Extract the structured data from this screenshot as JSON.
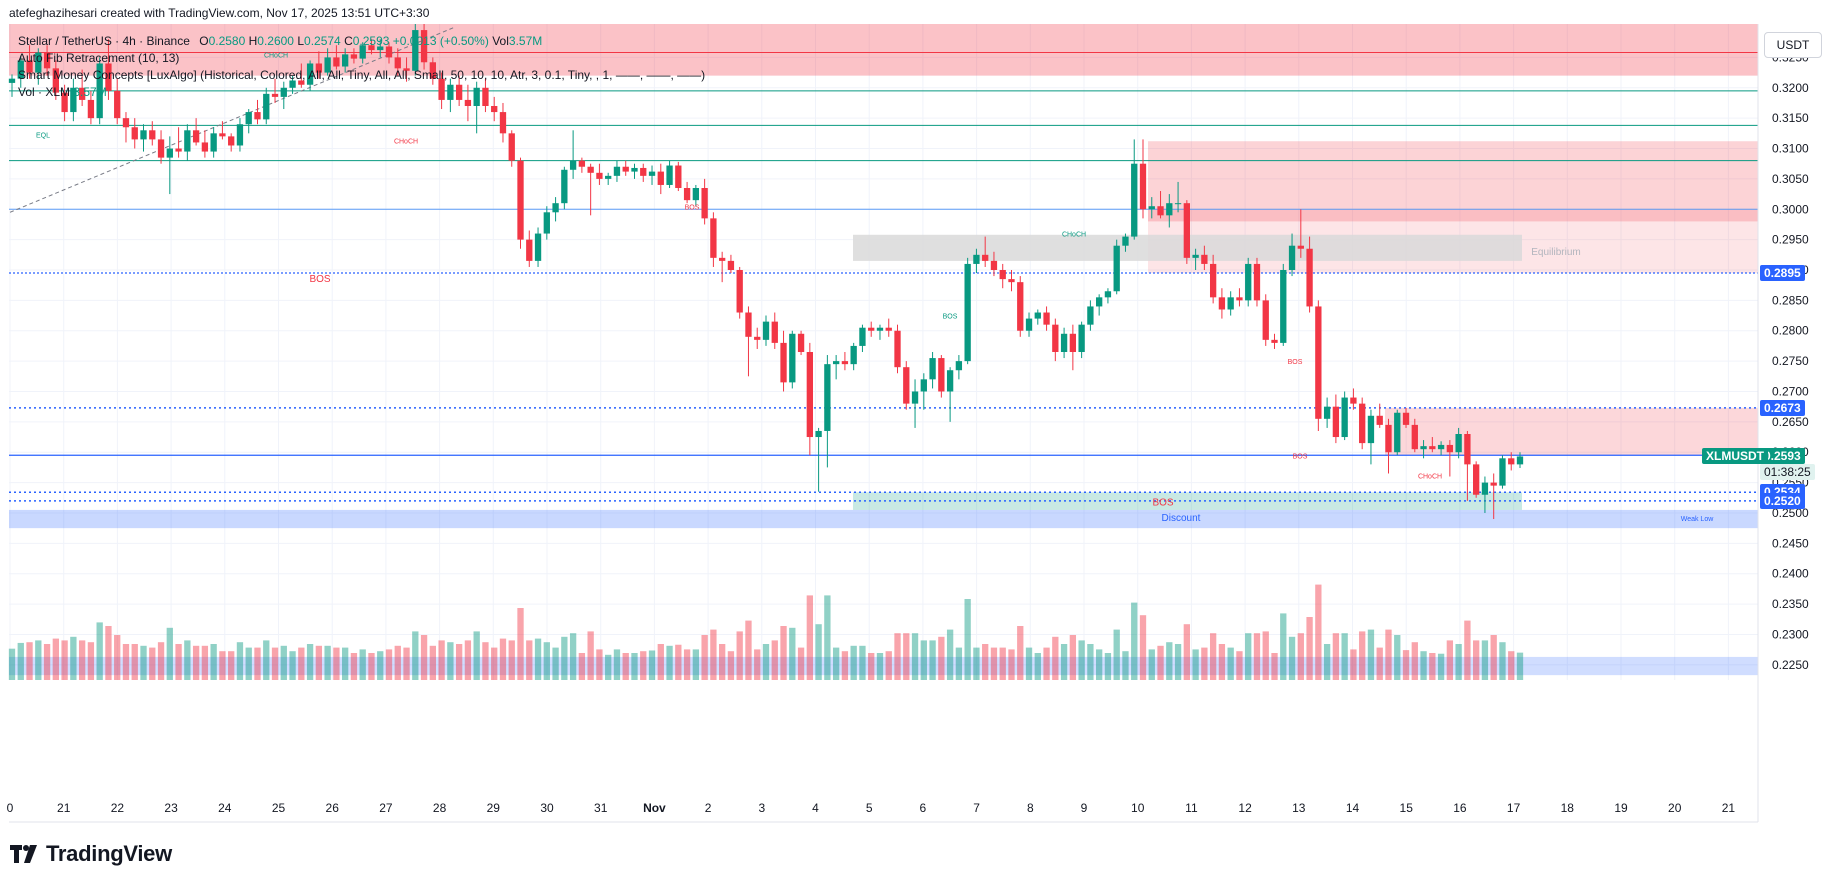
{
  "header": {
    "created_by": "atefeghazihesari created with TradingView.com, Nov 17, 2025 13:51 UTC+3:30"
  },
  "legend": {
    "symbol": "Stellar / TetherUS · 4h · Binance",
    "open_label": "O",
    "open": "0.2580",
    "high_label": "H",
    "high": "0.2600",
    "low_label": "L",
    "low": "0.2574",
    "close_label": "C",
    "close": "0.2593",
    "change": "+0.0013 (+0.50%)",
    "vol_label": "Vol",
    "vol": "3.57M",
    "indicator1": "Auto Fib Retracement (10, 13)",
    "indicator2": "Smart Money Concepts [LuxAlgo] (Historical, Colored, All, All, Tiny, All, All, Small, 50, 10, 10, Atr, 3, 0.1, Tiny, , 1, ——, ——, ——)",
    "indicator3_label": "Vol · XLM",
    "indicator3_value": "3.57M"
  },
  "currency_button": "USDT",
  "branding": "TradingView",
  "colors": {
    "up": "#089981",
    "down": "#f23645",
    "blue": "#2962ff",
    "supply_zone": "#f7c9cd",
    "demand_zone": "#c9e8e1",
    "discount_zone": "#c7d7fb",
    "equilibrium": "#d9d9d9"
  },
  "chart_data": {
    "type": "candlestick",
    "symbol": "XLMUSDT",
    "interval": "4h",
    "y_axis": {
      "ylim": [
        0.2225,
        0.3305
      ],
      "ticks": [
        "0.3250",
        "0.3200",
        "0.3150",
        "0.3100",
        "0.3050",
        "0.3000",
        "0.2950",
        "0.2900",
        "0.2850",
        "0.2800",
        "0.2750",
        "0.2700",
        "0.2650",
        "0.2600",
        "0.2550",
        "0.2500",
        "0.2450",
        "0.2400",
        "0.2350",
        "0.2300",
        "0.2250"
      ]
    },
    "x_axis": {
      "ticks": [
        "0",
        "21",
        "22",
        "23",
        "24",
        "25",
        "26",
        "27",
        "28",
        "29",
        "30",
        "31",
        "Nov",
        "2",
        "3",
        "4",
        "5",
        "6",
        "7",
        "8",
        "9",
        "10",
        "11",
        "12",
        "13",
        "14",
        "15",
        "16",
        "17",
        "18",
        "19",
        "20",
        "21"
      ]
    },
    "price_tags": [
      {
        "label": "",
        "value": "0.2895",
        "color": "#2962ff"
      },
      {
        "label": "",
        "value": "0.2673",
        "color": "#2962ff"
      },
      {
        "label": "XLMUSDT",
        "value": "0.2593",
        "countdown": "01:38:25",
        "color": "#089981"
      },
      {
        "label": "",
        "value": "0.2534",
        "color": "#2962ff"
      },
      {
        "label": "",
        "value": "0.2520",
        "color": "#2962ff"
      }
    ],
    "annotations": [
      "EQL",
      "CHoCH",
      "CHoCH",
      "BOS",
      "BOS",
      "BOS",
      "CHoCH",
      "BOS",
      "CHoCH",
      "BOS",
      "BOS",
      "Equilibrium",
      "Discount",
      "Weak Low"
    ],
    "candles": [
      {
        "o": 0.3208,
        "h": 0.3222,
        "l": 0.3185,
        "c": 0.3215
      },
      {
        "o": 0.3215,
        "h": 0.3253,
        "l": 0.32,
        "c": 0.3245
      },
      {
        "o": 0.3245,
        "h": 0.327,
        "l": 0.3215,
        "c": 0.3225
      },
      {
        "o": 0.3225,
        "h": 0.3265,
        "l": 0.3205,
        "c": 0.3258
      },
      {
        "o": 0.3258,
        "h": 0.327,
        "l": 0.322,
        "c": 0.3232
      },
      {
        "o": 0.3232,
        "h": 0.3245,
        "l": 0.318,
        "c": 0.3192
      },
      {
        "o": 0.3192,
        "h": 0.3205,
        "l": 0.3145,
        "c": 0.316
      },
      {
        "o": 0.316,
        "h": 0.3215,
        "l": 0.3145,
        "c": 0.32
      },
      {
        "o": 0.32,
        "h": 0.323,
        "l": 0.317,
        "c": 0.318
      },
      {
        "o": 0.318,
        "h": 0.3195,
        "l": 0.314,
        "c": 0.315
      },
      {
        "o": 0.315,
        "h": 0.325,
        "l": 0.314,
        "c": 0.324
      },
      {
        "o": 0.324,
        "h": 0.328,
        "l": 0.318,
        "c": 0.3195
      },
      {
        "o": 0.3195,
        "h": 0.3215,
        "l": 0.314,
        "c": 0.315
      },
      {
        "o": 0.315,
        "h": 0.316,
        "l": 0.311,
        "c": 0.3135
      },
      {
        "o": 0.3135,
        "h": 0.315,
        "l": 0.31,
        "c": 0.3115
      },
      {
        "o": 0.3115,
        "h": 0.314,
        "l": 0.3095,
        "c": 0.313
      },
      {
        "o": 0.313,
        "h": 0.3145,
        "l": 0.3105,
        "c": 0.3115
      },
      {
        "o": 0.3115,
        "h": 0.313,
        "l": 0.3075,
        "c": 0.3085
      },
      {
        "o": 0.3085,
        "h": 0.312,
        "l": 0.3025,
        "c": 0.31
      },
      {
        "o": 0.31,
        "h": 0.3135,
        "l": 0.3085,
        "c": 0.3095
      },
      {
        "o": 0.3095,
        "h": 0.314,
        "l": 0.308,
        "c": 0.313
      },
      {
        "o": 0.313,
        "h": 0.315,
        "l": 0.3105,
        "c": 0.311
      },
      {
        "o": 0.311,
        "h": 0.313,
        "l": 0.3085,
        "c": 0.3095
      },
      {
        "o": 0.3095,
        "h": 0.3135,
        "l": 0.3085,
        "c": 0.3125
      },
      {
        "o": 0.3125,
        "h": 0.3145,
        "l": 0.3115,
        "c": 0.312
      },
      {
        "o": 0.312,
        "h": 0.3125,
        "l": 0.3095,
        "c": 0.3105
      },
      {
        "o": 0.3105,
        "h": 0.315,
        "l": 0.3095,
        "c": 0.314
      },
      {
        "o": 0.314,
        "h": 0.3165,
        "l": 0.3125,
        "c": 0.316
      },
      {
        "o": 0.316,
        "h": 0.318,
        "l": 0.314,
        "c": 0.3148
      },
      {
        "o": 0.3148,
        "h": 0.32,
        "l": 0.314,
        "c": 0.319
      },
      {
        "o": 0.319,
        "h": 0.3215,
        "l": 0.3175,
        "c": 0.3185
      },
      {
        "o": 0.3185,
        "h": 0.321,
        "l": 0.3165,
        "c": 0.32
      },
      {
        "o": 0.32,
        "h": 0.322,
        "l": 0.319,
        "c": 0.3212
      },
      {
        "o": 0.3212,
        "h": 0.324,
        "l": 0.32,
        "c": 0.3205
      },
      {
        "o": 0.3205,
        "h": 0.3245,
        "l": 0.3195,
        "c": 0.324
      },
      {
        "o": 0.324,
        "h": 0.326,
        "l": 0.3215,
        "c": 0.3225
      },
      {
        "o": 0.3225,
        "h": 0.3265,
        "l": 0.322,
        "c": 0.325
      },
      {
        "o": 0.325,
        "h": 0.327,
        "l": 0.323,
        "c": 0.3235
      },
      {
        "o": 0.3235,
        "h": 0.3265,
        "l": 0.3225,
        "c": 0.3255
      },
      {
        "o": 0.3255,
        "h": 0.3265,
        "l": 0.324,
        "c": 0.3248
      },
      {
        "o": 0.3248,
        "h": 0.3275,
        "l": 0.324,
        "c": 0.327
      },
      {
        "o": 0.327,
        "h": 0.328,
        "l": 0.3255,
        "c": 0.3262
      },
      {
        "o": 0.3262,
        "h": 0.328,
        "l": 0.325,
        "c": 0.3268
      },
      {
        "o": 0.3268,
        "h": 0.3275,
        "l": 0.324,
        "c": 0.325
      },
      {
        "o": 0.325,
        "h": 0.3265,
        "l": 0.322,
        "c": 0.3232
      },
      {
        "o": 0.3232,
        "h": 0.325,
        "l": 0.321,
        "c": 0.3228
      },
      {
        "o": 0.3228,
        "h": 0.3305,
        "l": 0.322,
        "c": 0.3295
      },
      {
        "o": 0.3295,
        "h": 0.3305,
        "l": 0.323,
        "c": 0.3242
      },
      {
        "o": 0.3242,
        "h": 0.325,
        "l": 0.3205,
        "c": 0.3215
      },
      {
        "o": 0.3215,
        "h": 0.3225,
        "l": 0.3165,
        "c": 0.318
      },
      {
        "o": 0.318,
        "h": 0.3215,
        "l": 0.316,
        "c": 0.3205
      },
      {
        "o": 0.3205,
        "h": 0.322,
        "l": 0.317,
        "c": 0.318
      },
      {
        "o": 0.318,
        "h": 0.3205,
        "l": 0.3145,
        "c": 0.317
      },
      {
        "o": 0.317,
        "h": 0.321,
        "l": 0.3125,
        "c": 0.32
      },
      {
        "o": 0.32,
        "h": 0.3215,
        "l": 0.316,
        "c": 0.317
      },
      {
        "o": 0.317,
        "h": 0.3185,
        "l": 0.3145,
        "c": 0.316
      },
      {
        "o": 0.316,
        "h": 0.3175,
        "l": 0.311,
        "c": 0.3125
      },
      {
        "o": 0.3125,
        "h": 0.313,
        "l": 0.307,
        "c": 0.308
      },
      {
        "o": 0.308,
        "h": 0.3085,
        "l": 0.2935,
        "c": 0.295
      },
      {
        "o": 0.295,
        "h": 0.2965,
        "l": 0.2905,
        "c": 0.2915
      },
      {
        "o": 0.2915,
        "h": 0.297,
        "l": 0.2905,
        "c": 0.296
      },
      {
        "o": 0.296,
        "h": 0.3005,
        "l": 0.295,
        "c": 0.2995
      },
      {
        "o": 0.2995,
        "h": 0.302,
        "l": 0.298,
        "c": 0.301
      },
      {
        "o": 0.301,
        "h": 0.307,
        "l": 0.3,
        "c": 0.3065
      },
      {
        "o": 0.3065,
        "h": 0.313,
        "l": 0.305,
        "c": 0.308
      },
      {
        "o": 0.308,
        "h": 0.3085,
        "l": 0.306,
        "c": 0.307
      },
      {
        "o": 0.307,
        "h": 0.3075,
        "l": 0.299,
        "c": 0.306
      },
      {
        "o": 0.306,
        "h": 0.3075,
        "l": 0.304,
        "c": 0.305
      },
      {
        "o": 0.305,
        "h": 0.306,
        "l": 0.304,
        "c": 0.3055
      },
      {
        "o": 0.3055,
        "h": 0.308,
        "l": 0.3045,
        "c": 0.307
      },
      {
        "o": 0.307,
        "h": 0.308,
        "l": 0.3055,
        "c": 0.3062
      },
      {
        "o": 0.3062,
        "h": 0.3075,
        "l": 0.305,
        "c": 0.3068
      },
      {
        "o": 0.3068,
        "h": 0.3075,
        "l": 0.3045,
        "c": 0.3055
      },
      {
        "o": 0.3055,
        "h": 0.3072,
        "l": 0.304,
        "c": 0.3062
      },
      {
        "o": 0.3062,
        "h": 0.3075,
        "l": 0.3025,
        "c": 0.304
      },
      {
        "o": 0.304,
        "h": 0.308,
        "l": 0.3035,
        "c": 0.3072
      },
      {
        "o": 0.3072,
        "h": 0.3078,
        "l": 0.303,
        "c": 0.3035
      },
      {
        "o": 0.3035,
        "h": 0.3045,
        "l": 0.301,
        "c": 0.3015
      },
      {
        "o": 0.3015,
        "h": 0.304,
        "l": 0.3005,
        "c": 0.3035
      },
      {
        "o": 0.3035,
        "h": 0.305,
        "l": 0.2975,
        "c": 0.2985
      },
      {
        "o": 0.2985,
        "h": 0.2995,
        "l": 0.2905,
        "c": 0.292
      },
      {
        "o": 0.292,
        "h": 0.293,
        "l": 0.288,
        "c": 0.2915
      },
      {
        "o": 0.2915,
        "h": 0.2925,
        "l": 0.2895,
        "c": 0.29
      },
      {
        "o": 0.29,
        "h": 0.2905,
        "l": 0.282,
        "c": 0.283
      },
      {
        "o": 0.283,
        "h": 0.284,
        "l": 0.2725,
        "c": 0.279
      },
      {
        "o": 0.279,
        "h": 0.2805,
        "l": 0.277,
        "c": 0.2785
      },
      {
        "o": 0.2785,
        "h": 0.2825,
        "l": 0.2775,
        "c": 0.2815
      },
      {
        "o": 0.2815,
        "h": 0.283,
        "l": 0.277,
        "c": 0.278
      },
      {
        "o": 0.278,
        "h": 0.28,
        "l": 0.27,
        "c": 0.2715
      },
      {
        "o": 0.2715,
        "h": 0.28,
        "l": 0.2705,
        "c": 0.2795
      },
      {
        "o": 0.2795,
        "h": 0.28,
        "l": 0.276,
        "c": 0.2765
      },
      {
        "o": 0.2765,
        "h": 0.278,
        "l": 0.2595,
        "c": 0.2625
      },
      {
        "o": 0.2625,
        "h": 0.264,
        "l": 0.2535,
        "c": 0.2635
      },
      {
        "o": 0.2635,
        "h": 0.276,
        "l": 0.2575,
        "c": 0.2745
      },
      {
        "o": 0.2745,
        "h": 0.276,
        "l": 0.272,
        "c": 0.275
      },
      {
        "o": 0.275,
        "h": 0.2765,
        "l": 0.2735,
        "c": 0.2745
      },
      {
        "o": 0.2745,
        "h": 0.278,
        "l": 0.2735,
        "c": 0.2775
      },
      {
        "o": 0.2775,
        "h": 0.281,
        "l": 0.2765,
        "c": 0.2805
      },
      {
        "o": 0.2805,
        "h": 0.2815,
        "l": 0.279,
        "c": 0.28
      },
      {
        "o": 0.28,
        "h": 0.281,
        "l": 0.2785,
        "c": 0.2805
      },
      {
        "o": 0.2805,
        "h": 0.282,
        "l": 0.279,
        "c": 0.28
      },
      {
        "o": 0.28,
        "h": 0.281,
        "l": 0.273,
        "c": 0.274
      },
      {
        "o": 0.274,
        "h": 0.275,
        "l": 0.267,
        "c": 0.268
      },
      {
        "o": 0.268,
        "h": 0.272,
        "l": 0.264,
        "c": 0.27
      },
      {
        "o": 0.27,
        "h": 0.273,
        "l": 0.267,
        "c": 0.272
      },
      {
        "o": 0.272,
        "h": 0.2765,
        "l": 0.2705,
        "c": 0.2755
      },
      {
        "o": 0.2755,
        "h": 0.276,
        "l": 0.269,
        "c": 0.27
      },
      {
        "o": 0.27,
        "h": 0.274,
        "l": 0.265,
        "c": 0.2735
      },
      {
        "o": 0.2735,
        "h": 0.276,
        "l": 0.272,
        "c": 0.275
      },
      {
        "o": 0.275,
        "h": 0.292,
        "l": 0.2745,
        "c": 0.291
      },
      {
        "o": 0.291,
        "h": 0.2935,
        "l": 0.2895,
        "c": 0.2925
      },
      {
        "o": 0.2925,
        "h": 0.2955,
        "l": 0.2905,
        "c": 0.2915
      },
      {
        "o": 0.2915,
        "h": 0.293,
        "l": 0.289,
        "c": 0.29
      },
      {
        "o": 0.29,
        "h": 0.291,
        "l": 0.287,
        "c": 0.2885
      },
      {
        "o": 0.2885,
        "h": 0.29,
        "l": 0.2865,
        "c": 0.288
      },
      {
        "o": 0.288,
        "h": 0.289,
        "l": 0.279,
        "c": 0.28
      },
      {
        "o": 0.28,
        "h": 0.283,
        "l": 0.279,
        "c": 0.282
      },
      {
        "o": 0.282,
        "h": 0.2835,
        "l": 0.281,
        "c": 0.283
      },
      {
        "o": 0.283,
        "h": 0.284,
        "l": 0.28,
        "c": 0.281
      },
      {
        "o": 0.281,
        "h": 0.282,
        "l": 0.275,
        "c": 0.2765
      },
      {
        "o": 0.2765,
        "h": 0.2805,
        "l": 0.2755,
        "c": 0.2795
      },
      {
        "o": 0.2795,
        "h": 0.281,
        "l": 0.2735,
        "c": 0.2765
      },
      {
        "o": 0.2765,
        "h": 0.2815,
        "l": 0.2755,
        "c": 0.281
      },
      {
        "o": 0.281,
        "h": 0.285,
        "l": 0.28,
        "c": 0.284
      },
      {
        "o": 0.284,
        "h": 0.286,
        "l": 0.2825,
        "c": 0.2855
      },
      {
        "o": 0.2855,
        "h": 0.287,
        "l": 0.2845,
        "c": 0.2865
      },
      {
        "o": 0.2865,
        "h": 0.295,
        "l": 0.286,
        "c": 0.294
      },
      {
        "o": 0.294,
        "h": 0.296,
        "l": 0.293,
        "c": 0.2955
      },
      {
        "o": 0.2955,
        "h": 0.3115,
        "l": 0.295,
        "c": 0.3075
      },
      {
        "o": 0.3075,
        "h": 0.3115,
        "l": 0.2985,
        "c": 0.3
      },
      {
        "o": 0.3,
        "h": 0.302,
        "l": 0.2985,
        "c": 0.3005
      },
      {
        "o": 0.3005,
        "h": 0.303,
        "l": 0.2985,
        "c": 0.299
      },
      {
        "o": 0.299,
        "h": 0.3025,
        "l": 0.297,
        "c": 0.301
      },
      {
        "o": 0.301,
        "h": 0.3045,
        "l": 0.2995,
        "c": 0.301
      },
      {
        "o": 0.301,
        "h": 0.3015,
        "l": 0.291,
        "c": 0.292
      },
      {
        "o": 0.292,
        "h": 0.2935,
        "l": 0.29,
        "c": 0.2925
      },
      {
        "o": 0.2925,
        "h": 0.294,
        "l": 0.29,
        "c": 0.291
      },
      {
        "o": 0.291,
        "h": 0.2925,
        "l": 0.2845,
        "c": 0.2855
      },
      {
        "o": 0.2855,
        "h": 0.287,
        "l": 0.282,
        "c": 0.2835
      },
      {
        "o": 0.2835,
        "h": 0.2865,
        "l": 0.2825,
        "c": 0.2855
      },
      {
        "o": 0.2855,
        "h": 0.287,
        "l": 0.284,
        "c": 0.285
      },
      {
        "o": 0.285,
        "h": 0.292,
        "l": 0.284,
        "c": 0.291
      },
      {
        "o": 0.291,
        "h": 0.292,
        "l": 0.284,
        "c": 0.285
      },
      {
        "o": 0.285,
        "h": 0.286,
        "l": 0.2775,
        "c": 0.2785
      },
      {
        "o": 0.2785,
        "h": 0.2795,
        "l": 0.277,
        "c": 0.278
      },
      {
        "o": 0.278,
        "h": 0.291,
        "l": 0.2775,
        "c": 0.29
      },
      {
        "o": 0.29,
        "h": 0.296,
        "l": 0.289,
        "c": 0.294
      },
      {
        "o": 0.294,
        "h": 0.3,
        "l": 0.292,
        "c": 0.2935
      },
      {
        "o": 0.2935,
        "h": 0.2955,
        "l": 0.283,
        "c": 0.284
      },
      {
        "o": 0.284,
        "h": 0.285,
        "l": 0.2635,
        "c": 0.2655
      },
      {
        "o": 0.2655,
        "h": 0.269,
        "l": 0.264,
        "c": 0.2675
      },
      {
        "o": 0.2675,
        "h": 0.2695,
        "l": 0.2615,
        "c": 0.2625
      },
      {
        "o": 0.2625,
        "h": 0.27,
        "l": 0.262,
        "c": 0.269
      },
      {
        "o": 0.269,
        "h": 0.2705,
        "l": 0.267,
        "c": 0.268
      },
      {
        "o": 0.268,
        "h": 0.269,
        "l": 0.2605,
        "c": 0.2615
      },
      {
        "o": 0.2615,
        "h": 0.267,
        "l": 0.258,
        "c": 0.266
      },
      {
        "o": 0.266,
        "h": 0.268,
        "l": 0.264,
        "c": 0.2645
      },
      {
        "o": 0.2645,
        "h": 0.2655,
        "l": 0.2565,
        "c": 0.26
      },
      {
        "o": 0.26,
        "h": 0.267,
        "l": 0.2595,
        "c": 0.2665
      },
      {
        "o": 0.2665,
        "h": 0.2673,
        "l": 0.264,
        "c": 0.2645
      },
      {
        "o": 0.2645,
        "h": 0.2655,
        "l": 0.26,
        "c": 0.2605
      },
      {
        "o": 0.2605,
        "h": 0.262,
        "l": 0.259,
        "c": 0.261
      },
      {
        "o": 0.261,
        "h": 0.2625,
        "l": 0.26,
        "c": 0.2605
      },
      {
        "o": 0.2605,
        "h": 0.2618,
        "l": 0.2595,
        "c": 0.2612
      },
      {
        "o": 0.2612,
        "h": 0.262,
        "l": 0.256,
        "c": 0.26
      },
      {
        "o": 0.26,
        "h": 0.264,
        "l": 0.259,
        "c": 0.263
      },
      {
        "o": 0.263,
        "h": 0.2635,
        "l": 0.252,
        "c": 0.258
      },
      {
        "o": 0.258,
        "h": 0.2585,
        "l": 0.2525,
        "c": 0.253
      },
      {
        "o": 0.253,
        "h": 0.256,
        "l": 0.25,
        "c": 0.255
      },
      {
        "o": 0.255,
        "h": 0.2565,
        "l": 0.249,
        "c": 0.2545
      },
      {
        "o": 0.2545,
        "h": 0.2595,
        "l": 0.254,
        "c": 0.259
      },
      {
        "o": 0.259,
        "h": 0.26,
        "l": 0.257,
        "c": 0.258
      },
      {
        "o": 0.258,
        "h": 0.26,
        "l": 0.2574,
        "c": 0.2593
      }
    ]
  }
}
